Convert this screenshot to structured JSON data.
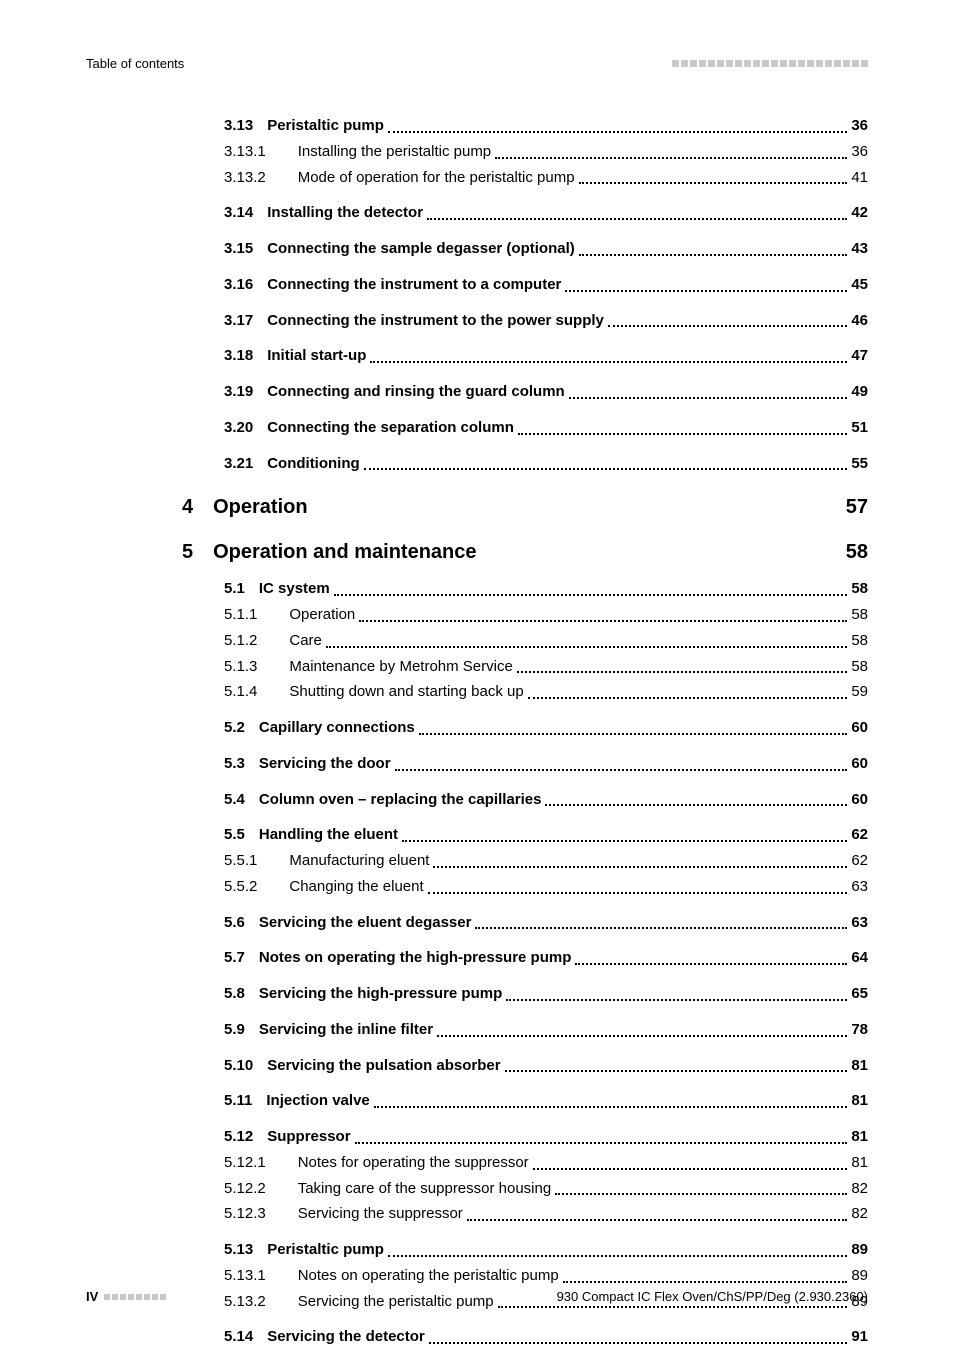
{
  "header": {
    "left": "Table of contents"
  },
  "toc": [
    {
      "type": "sec",
      "num": "3.13",
      "title": "Peristaltic pump",
      "page": "36",
      "bold": true
    },
    {
      "type": "sub",
      "num": "3.13.1",
      "title": "Installing the peristaltic pump",
      "page": "36"
    },
    {
      "type": "sub",
      "num": "3.13.2",
      "title": "Mode of operation for the peristaltic pump",
      "page": "41"
    },
    {
      "type": "sec",
      "num": "3.14",
      "title": "Installing the detector",
      "page": "42",
      "bold": true
    },
    {
      "type": "sec",
      "num": "3.15",
      "title": "Connecting the sample degasser (optional)",
      "page": "43",
      "bold": true
    },
    {
      "type": "sec",
      "num": "3.16",
      "title": "Connecting the instrument to a computer",
      "page": "45",
      "bold": true
    },
    {
      "type": "sec",
      "num": "3.17",
      "title": "Connecting the instrument to the power supply",
      "page": "46",
      "bold": true
    },
    {
      "type": "sec",
      "num": "3.18",
      "title": "Initial start-up",
      "page": "47",
      "bold": true
    },
    {
      "type": "sec",
      "num": "3.19",
      "title": "Connecting and rinsing the guard column",
      "page": "49",
      "bold": true
    },
    {
      "type": "sec",
      "num": "3.20",
      "title": "Connecting the separation column",
      "page": "51",
      "bold": true
    },
    {
      "type": "sec",
      "num": "3.21",
      "title": "Conditioning",
      "page": "55",
      "bold": true
    },
    {
      "type": "chapter",
      "num": "4",
      "title": "Operation",
      "page": "57"
    },
    {
      "type": "chapter",
      "num": "5",
      "title": "Operation and maintenance",
      "page": "58"
    },
    {
      "type": "sec",
      "num": "5.1",
      "title": "IC system",
      "page": "58",
      "bold": true
    },
    {
      "type": "sub",
      "num": "5.1.1",
      "title": "Operation",
      "page": "58"
    },
    {
      "type": "sub",
      "num": "5.1.2",
      "title": "Care",
      "page": "58"
    },
    {
      "type": "sub",
      "num": "5.1.3",
      "title": "Maintenance by Metrohm Service",
      "page": "58"
    },
    {
      "type": "sub",
      "num": "5.1.4",
      "title": "Shutting down and starting back up",
      "page": "59"
    },
    {
      "type": "sec",
      "num": "5.2",
      "title": "Capillary connections",
      "page": "60",
      "bold": true
    },
    {
      "type": "sec",
      "num": "5.3",
      "title": "Servicing the door",
      "page": "60",
      "bold": true
    },
    {
      "type": "sec",
      "num": "5.4",
      "title": "Column oven – replacing the capillaries",
      "page": "60",
      "bold": true
    },
    {
      "type": "sec",
      "num": "5.5",
      "title": "Handling the eluent",
      "page": "62",
      "bold": true
    },
    {
      "type": "sub",
      "num": "5.5.1",
      "title": "Manufacturing eluent",
      "page": "62"
    },
    {
      "type": "sub",
      "num": "5.5.2",
      "title": "Changing the eluent",
      "page": "63"
    },
    {
      "type": "sec",
      "num": "5.6",
      "title": "Servicing the eluent degasser",
      "page": "63",
      "bold": true
    },
    {
      "type": "sec",
      "num": "5.7",
      "title": "Notes on operating the high-pressure pump",
      "page": "64",
      "bold": true
    },
    {
      "type": "sec",
      "num": "5.8",
      "title": "Servicing the high-pressure pump",
      "page": "65",
      "bold": true
    },
    {
      "type": "sec",
      "num": "5.9",
      "title": "Servicing the inline filter",
      "page": "78",
      "bold": true
    },
    {
      "type": "sec",
      "num": "5.10",
      "title": "Servicing the pulsation absorber",
      "page": "81",
      "bold": true
    },
    {
      "type": "sec",
      "num": "5.11",
      "title": "Injection valve",
      "page": "81",
      "bold": true
    },
    {
      "type": "sec",
      "num": "5.12",
      "title": "Suppressor",
      "page": "81",
      "bold": true
    },
    {
      "type": "sub",
      "num": "5.12.1",
      "title": "Notes for operating the suppressor",
      "page": "81"
    },
    {
      "type": "sub",
      "num": "5.12.2",
      "title": "Taking care of the suppressor housing",
      "page": "82"
    },
    {
      "type": "sub",
      "num": "5.12.3",
      "title": "Servicing the suppressor",
      "page": "82"
    },
    {
      "type": "sec",
      "num": "5.13",
      "title": "Peristaltic pump",
      "page": "89",
      "bold": true
    },
    {
      "type": "sub",
      "num": "5.13.1",
      "title": "Notes on operating the peristaltic pump",
      "page": "89"
    },
    {
      "type": "sub",
      "num": "5.13.2",
      "title": "Servicing the peristaltic pump",
      "page": "89"
    },
    {
      "type": "sec",
      "num": "5.14",
      "title": "Servicing the detector",
      "page": "91",
      "bold": true
    }
  ],
  "footer": {
    "left_page": "IV",
    "right": "930 Compact IC Flex Oven/ChS/PP/Deg (2.930.2360)"
  }
}
